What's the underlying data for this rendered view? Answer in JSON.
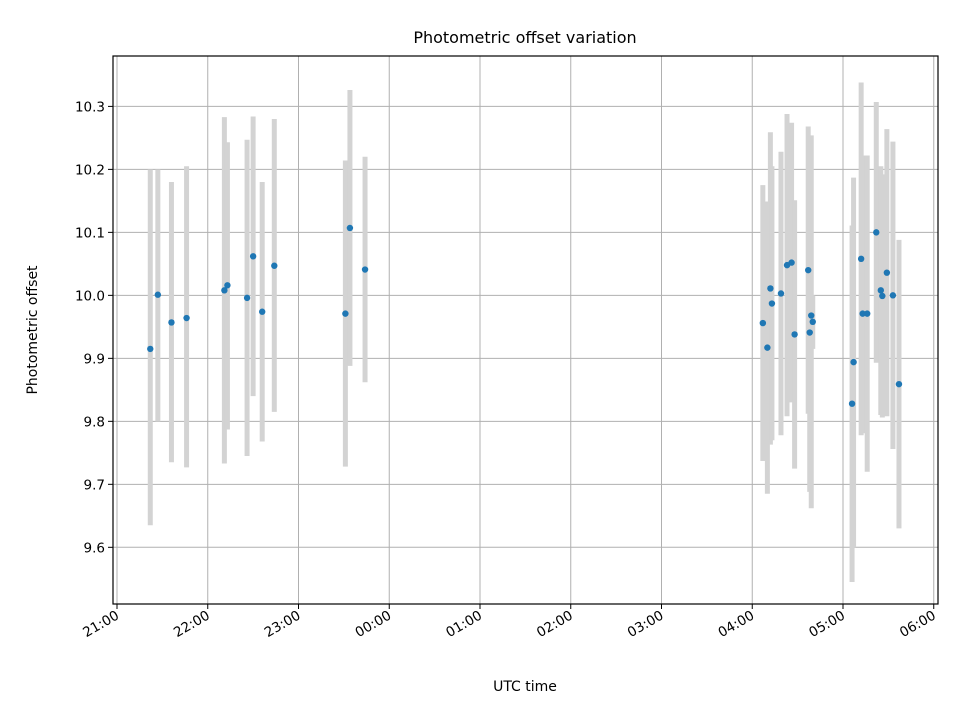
{
  "chart_data": {
    "type": "scatter",
    "title": "Photometric offset variation",
    "xlabel": "UTC time",
    "ylabel": "Photometric offset",
    "x_ticks": [
      "21:00",
      "22:00",
      "23:00",
      "00:00",
      "01:00",
      "02:00",
      "03:00",
      "04:00",
      "05:00",
      "06:00"
    ],
    "x_range": [
      "21:00",
      "06:00"
    ],
    "y_ticks": [
      "9.6",
      "9.7",
      "9.8",
      "9.9",
      "10.0",
      "10.1",
      "10.2",
      "10.3"
    ],
    "ylim": [
      9.51,
      10.38
    ],
    "grid": true,
    "errorbar_color": "#d3d3d3",
    "marker_color": "#1f77b4",
    "points": [
      {
        "x": "21:22",
        "y": 9.915,
        "ylow": 9.635,
        "yhigh": 10.2
      },
      {
        "x": "21:27",
        "y": 10.001,
        "ylow": 9.8,
        "yhigh": 10.2
      },
      {
        "x": "21:36",
        "y": 9.957,
        "ylow": 9.735,
        "yhigh": 10.18
      },
      {
        "x": "21:46",
        "y": 9.964,
        "ylow": 9.727,
        "yhigh": 10.205
      },
      {
        "x": "22:11",
        "y": 10.008,
        "ylow": 9.733,
        "yhigh": 10.283
      },
      {
        "x": "22:13",
        "y": 10.016,
        "ylow": 9.787,
        "yhigh": 10.243
      },
      {
        "x": "22:26",
        "y": 9.996,
        "ylow": 9.745,
        "yhigh": 10.247
      },
      {
        "x": "22:30",
        "y": 10.062,
        "ylow": 9.84,
        "yhigh": 10.284
      },
      {
        "x": "22:36",
        "y": 9.974,
        "ylow": 9.768,
        "yhigh": 10.18
      },
      {
        "x": "22:44",
        "y": 10.047,
        "ylow": 9.815,
        "yhigh": 10.28
      },
      {
        "x": "23:31",
        "y": 9.971,
        "ylow": 9.728,
        "yhigh": 10.214
      },
      {
        "x": "23:34",
        "y": 10.107,
        "ylow": 9.888,
        "yhigh": 10.326
      },
      {
        "x": "23:44",
        "y": 10.041,
        "ylow": 9.862,
        "yhigh": 10.22
      },
      {
        "x": "04:07",
        "y": 9.956,
        "ylow": 9.737,
        "yhigh": 10.175
      },
      {
        "x": "04:10",
        "y": 9.917,
        "ylow": 9.685,
        "yhigh": 10.149
      },
      {
        "x": "04:12",
        "y": 10.011,
        "ylow": 9.763,
        "yhigh": 10.259
      },
      {
        "x": "04:13",
        "y": 9.987,
        "ylow": 9.77,
        "yhigh": 10.205
      },
      {
        "x": "04:19",
        "y": 10.003,
        "ylow": 9.778,
        "yhigh": 10.228
      },
      {
        "x": "04:23",
        "y": 10.048,
        "ylow": 9.808,
        "yhigh": 10.288
      },
      {
        "x": "04:26",
        "y": 10.052,
        "ylow": 9.83,
        "yhigh": 10.274
      },
      {
        "x": "04:28",
        "y": 9.938,
        "ylow": 9.725,
        "yhigh": 10.151
      },
      {
        "x": "04:37",
        "y": 10.04,
        "ylow": 9.812,
        "yhigh": 10.268
      },
      {
        "x": "04:38",
        "y": 9.941,
        "ylow": 9.688,
        "yhigh": 10.194
      },
      {
        "x": "04:39",
        "y": 9.968,
        "ylow": 9.662,
        "yhigh": 10.254
      },
      {
        "x": "04:40",
        "y": 9.958,
        "ylow": 9.915,
        "yhigh": 10.0
      },
      {
        "x": "05:06",
        "y": 9.828,
        "ylow": 9.545,
        "yhigh": 10.111
      },
      {
        "x": "05:07",
        "y": 9.894,
        "ylow": 9.6,
        "yhigh": 10.187
      },
      {
        "x": "05:12",
        "y": 10.058,
        "ylow": 9.778,
        "yhigh": 10.338
      },
      {
        "x": "05:13",
        "y": 9.971,
        "ylow": 9.781,
        "yhigh": 10.222
      },
      {
        "x": "05:16",
        "y": 9.971,
        "ylow": 9.72,
        "yhigh": 10.222
      },
      {
        "x": "05:22",
        "y": 10.1,
        "ylow": 9.893,
        "yhigh": 10.307
      },
      {
        "x": "05:25",
        "y": 10.008,
        "ylow": 9.81,
        "yhigh": 10.205
      },
      {
        "x": "05:26",
        "y": 9.999,
        "ylow": 9.806,
        "yhigh": 10.192
      },
      {
        "x": "05:29",
        "y": 10.036,
        "ylow": 9.808,
        "yhigh": 10.264
      },
      {
        "x": "05:33",
        "y": 10.0,
        "ylow": 9.756,
        "yhigh": 10.244
      },
      {
        "x": "05:37",
        "y": 9.859,
        "ylow": 9.63,
        "yhigh": 10.088
      }
    ]
  }
}
